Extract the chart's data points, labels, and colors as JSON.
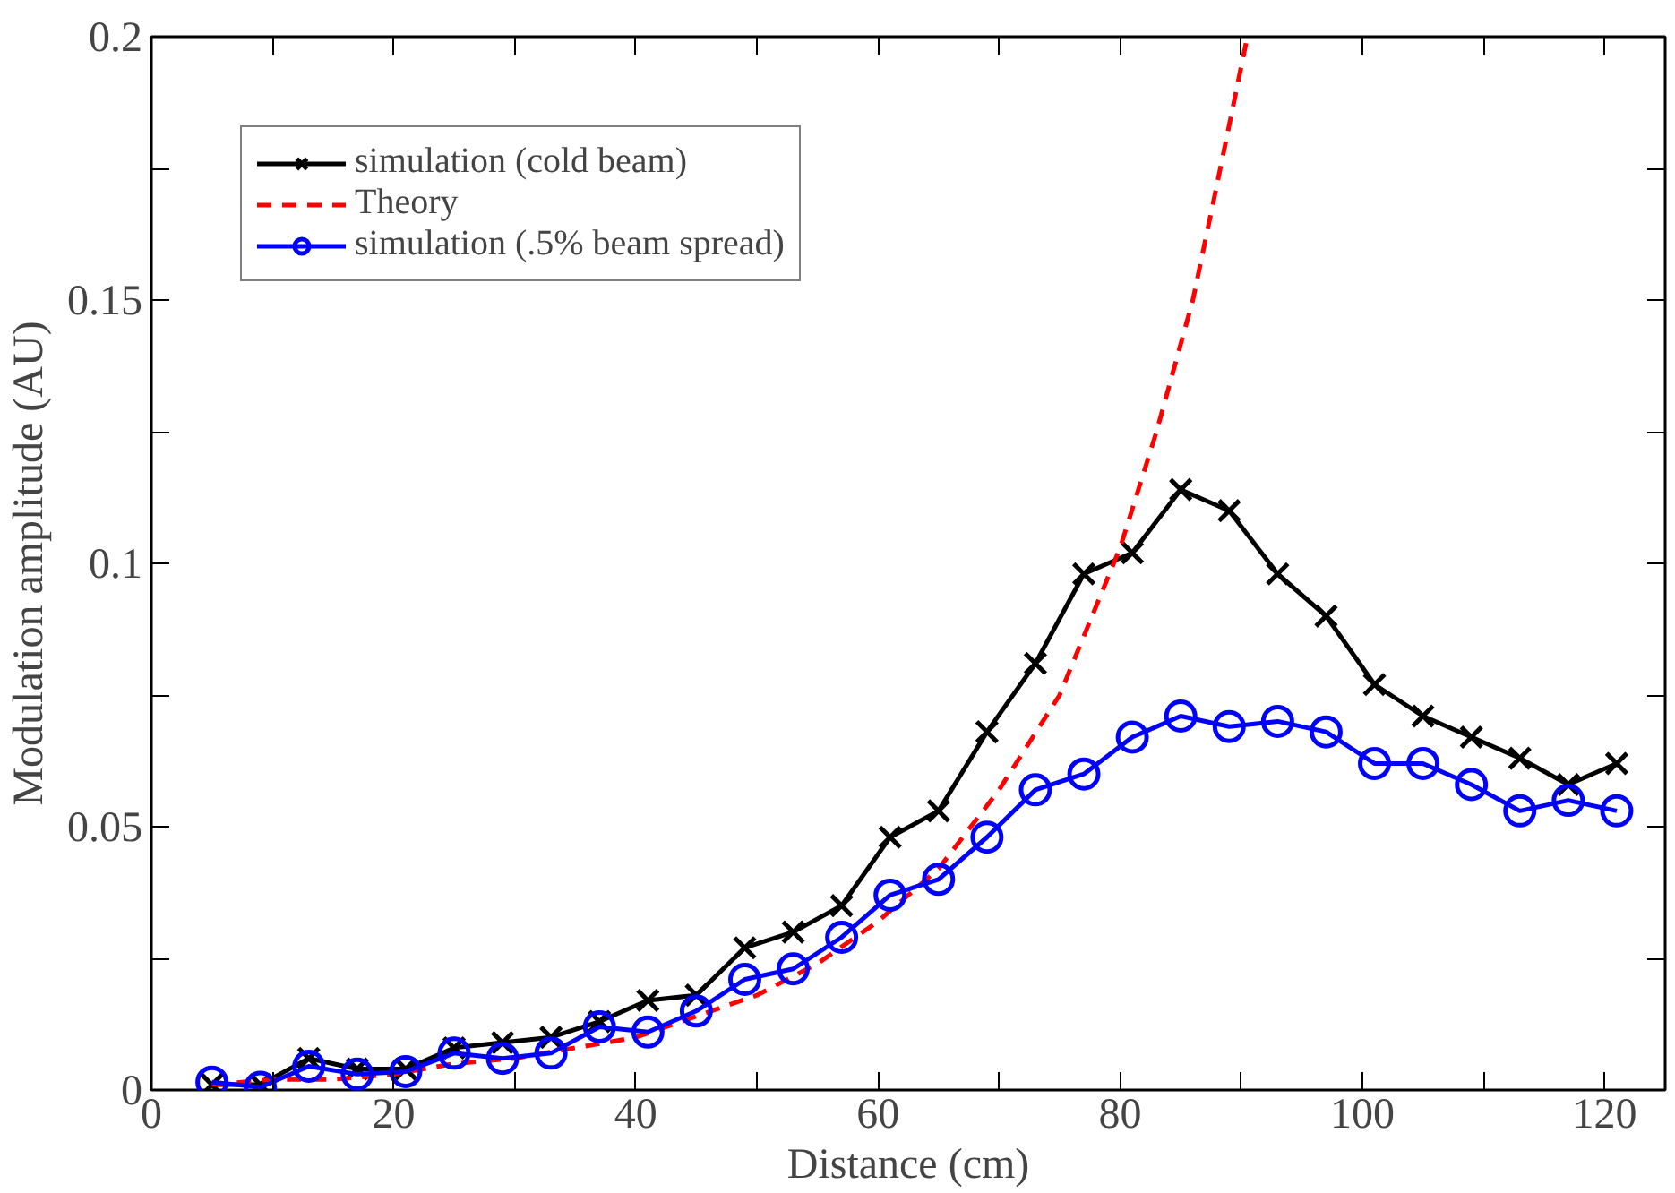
{
  "chart_data": {
    "type": "line",
    "xlabel": "Distance (cm)",
    "ylabel": "Modulation amplitude (AU)",
    "xlim": [
      0,
      125
    ],
    "xticks": [
      0,
      {
        "value": 10,
        "label": null
      },
      20,
      {
        "value": 30,
        "label": null
      },
      40,
      {
        "value": 50,
        "label": null
      },
      60,
      {
        "value": 70,
        "label": null
      },
      80,
      {
        "value": 90,
        "label": null
      },
      100,
      {
        "value": 110,
        "label": null
      },
      120
    ],
    "ylim": [
      0,
      0.2
    ],
    "yticks": [
      0,
      {
        "value": 0.025,
        "label": null
      },
      0.05,
      {
        "value": 0.075,
        "label": null
      },
      0.1,
      {
        "value": 0.125,
        "label": null
      },
      0.15,
      {
        "value": 0.175,
        "label": null
      },
      0.2
    ],
    "grid": false,
    "legend": "top left",
    "series": [
      {
        "name": "simulation (cold beam)",
        "color": "#000000",
        "marker": "cross",
        "line_style": "solid",
        "x": [
          5,
          9,
          13,
          17,
          21,
          25,
          29,
          33,
          37,
          41,
          45,
          49,
          53,
          57,
          61,
          65,
          69,
          73,
          77,
          81,
          85,
          89,
          93,
          97,
          101,
          105,
          109,
          113,
          117,
          121
        ],
        "values": [
          0.001,
          0.001,
          0.006,
          0.004,
          0.004,
          0.008,
          0.009,
          0.01,
          0.013,
          0.017,
          0.018,
          0.027,
          0.03,
          0.035,
          0.048,
          0.053,
          0.068,
          0.081,
          0.098,
          0.102,
          0.114,
          0.11,
          0.098,
          0.09,
          0.077,
          0.071,
          0.067,
          0.063,
          0.058,
          0.062
        ]
      },
      {
        "name": "Theory",
        "color": "#ff0000",
        "marker": "none",
        "line_style": "dashed",
        "x": [
          5,
          10,
          15,
          20,
          25,
          30,
          35,
          40,
          45,
          50,
          55,
          60,
          65,
          70,
          75,
          80,
          83,
          86,
          88,
          90.5
        ],
        "values": [
          0.001,
          0.002,
          0.002,
          0.003,
          0.005,
          0.006,
          0.008,
          0.01,
          0.014,
          0.018,
          0.024,
          0.032,
          0.042,
          0.057,
          0.075,
          0.103,
          0.125,
          0.15,
          0.172,
          0.2
        ]
      },
      {
        "name": "simulation (.5% beam spread)",
        "color": "#0000ff",
        "marker": "circle",
        "line_style": "solid",
        "x": [
          5,
          9,
          13,
          17,
          21,
          25,
          29,
          33,
          37,
          41,
          45,
          49,
          53,
          57,
          61,
          65,
          69,
          73,
          77,
          81,
          85,
          89,
          93,
          97,
          101,
          105,
          109,
          113,
          117,
          121
        ],
        "values": [
          0.0015,
          0.0005,
          0.0045,
          0.003,
          0.0035,
          0.007,
          0.006,
          0.007,
          0.012,
          0.011,
          0.015,
          0.021,
          0.023,
          0.029,
          0.037,
          0.04,
          0.048,
          0.057,
          0.06,
          0.067,
          0.071,
          0.069,
          0.07,
          0.068,
          0.062,
          0.062,
          0.058,
          0.053,
          0.055,
          0.053
        ]
      }
    ]
  }
}
